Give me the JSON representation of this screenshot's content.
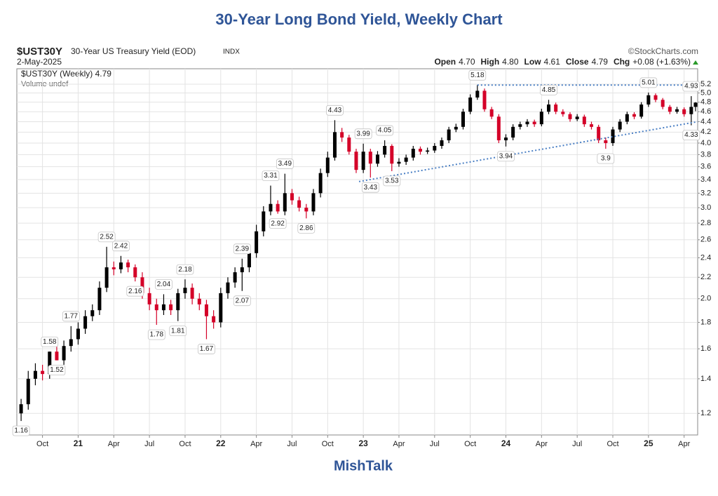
{
  "chart_data": {
    "type": "candlestick",
    "title": "30-Year Long Bond Yield, Weekly Chart",
    "symbol": "$UST30Y",
    "description": "30-Year US Treasury Yield (EOD)",
    "exchange": "INDX",
    "source": "©StockCharts.com",
    "date": "2-May-2025",
    "quote": [
      [
        "Open",
        "4.70"
      ],
      [
        "High",
        "4.80"
      ],
      [
        "Low",
        "4.61"
      ],
      [
        "Close",
        "4.79"
      ],
      [
        "Chg",
        "+0.08 (+1.63%)"
      ]
    ],
    "legend": [
      "$UST30Y (Weekly) 4.79",
      "Volume undef"
    ],
    "footer": "MishTalk",
    "ylog": true,
    "grid": true,
    "up_color": "#000000",
    "down_color": "#d40028",
    "trend_color": "#4a7fc4",
    "xlim": [
      2020.57,
      2025.345
    ],
    "ylim": [
      1.09,
      5.57
    ],
    "xticks": [
      {
        "value": 2020.75,
        "label": "Oct"
      },
      {
        "value": 2021.0,
        "label": "21"
      },
      {
        "value": 2021.25,
        "label": "Apr"
      },
      {
        "value": 2021.5,
        "label": "Jul"
      },
      {
        "value": 2021.75,
        "label": "Oct"
      },
      {
        "value": 2022.0,
        "label": "22"
      },
      {
        "value": 2022.25,
        "label": "Apr"
      },
      {
        "value": 2022.5,
        "label": "Jul"
      },
      {
        "value": 2022.75,
        "label": "Oct"
      },
      {
        "value": 2023.0,
        "label": "23"
      },
      {
        "value": 2023.25,
        "label": "Apr"
      },
      {
        "value": 2023.5,
        "label": "Jul"
      },
      {
        "value": 2023.75,
        "label": "Oct"
      },
      {
        "value": 2024.0,
        "label": "24"
      },
      {
        "value": 2024.25,
        "label": "Apr"
      },
      {
        "value": 2024.5,
        "label": "Jul"
      },
      {
        "value": 2024.75,
        "label": "Oct"
      },
      {
        "value": 2025.0,
        "label": "25"
      },
      {
        "value": 2025.25,
        "label": "Apr"
      }
    ],
    "yticks": [
      1.2,
      1.4,
      1.6,
      1.8,
      {
        "value": 2.0,
        "label": "2.0"
      },
      2.2,
      2.4,
      2.6,
      2.8,
      {
        "value": 3.0,
        "label": "3.0"
      },
      3.2,
      3.4,
      3.6,
      3.8,
      {
        "value": 4.0,
        "label": "4.0"
      },
      4.2,
      4.4,
      4.6,
      4.8,
      {
        "value": 5.0,
        "label": "5.0"
      },
      5.2
    ],
    "x": [
      2020.6,
      2020.65,
      2020.7,
      2020.75,
      2020.8,
      2020.85,
      2020.9,
      2020.95,
      2021.0,
      2021.05,
      2021.1,
      2021.15,
      2021.2,
      2021.25,
      2021.3,
      2021.35,
      2021.4,
      2021.45,
      2021.5,
      2021.55,
      2021.6,
      2021.65,
      2021.7,
      2021.75,
      2021.8,
      2021.85,
      2021.9,
      2021.95,
      2022.0,
      2022.05,
      2022.1,
      2022.15,
      2022.2,
      2022.25,
      2022.3,
      2022.35,
      2022.4,
      2022.45,
      2022.5,
      2022.55,
      2022.6,
      2022.65,
      2022.7,
      2022.75,
      2022.8,
      2022.85,
      2022.9,
      2022.95,
      2023.0,
      2023.05,
      2023.1,
      2023.15,
      2023.2,
      2023.25,
      2023.3,
      2023.35,
      2023.4,
      2023.45,
      2023.5,
      2023.55,
      2023.6,
      2023.65,
      2023.7,
      2023.75,
      2023.8,
      2023.85,
      2023.9,
      2023.95,
      2024.0,
      2024.05,
      2024.1,
      2024.15,
      2024.2,
      2024.25,
      2024.3,
      2024.35,
      2024.4,
      2024.45,
      2024.5,
      2024.55,
      2024.6,
      2024.65,
      2024.7,
      2024.75,
      2024.8,
      2024.85,
      2024.9,
      2024.95,
      2025.0,
      2025.05,
      2025.1,
      2025.15,
      2025.2,
      2025.25,
      2025.3,
      2025.33
    ],
    "open": [
      1.2,
      1.25,
      1.4,
      1.45,
      1.43,
      1.58,
      1.52,
      1.62,
      1.67,
      1.75,
      1.85,
      1.9,
      2.1,
      2.3,
      2.28,
      2.35,
      2.3,
      2.2,
      2.05,
      1.95,
      1.9,
      1.95,
      1.9,
      2.05,
      2.1,
      2.0,
      1.95,
      1.85,
      1.8,
      2.05,
      2.15,
      2.25,
      2.3,
      2.45,
      2.7,
      2.95,
      3.05,
      2.95,
      3.2,
      3.1,
      3.0,
      2.95,
      3.2,
      3.5,
      3.75,
      4.2,
      4.1,
      3.85,
      3.55,
      3.85,
      3.65,
      3.8,
      3.95,
      3.65,
      3.68,
      3.75,
      3.9,
      3.85,
      3.87,
      3.95,
      4.05,
      4.25,
      4.3,
      4.6,
      4.9,
      5.05,
      4.65,
      4.5,
      4.05,
      4.1,
      4.3,
      4.35,
      4.4,
      4.35,
      4.6,
      4.75,
      4.6,
      4.55,
      4.45,
      4.5,
      4.35,
      4.3,
      4.05,
      4.0,
      4.25,
      4.4,
      4.55,
      4.5,
      4.75,
      4.95,
      4.85,
      4.7,
      4.6,
      4.65,
      4.55,
      4.7
    ],
    "high": [
      1.28,
      1.45,
      1.5,
      1.49,
      1.58,
      1.62,
      1.66,
      1.77,
      1.8,
      1.9,
      1.95,
      2.16,
      2.52,
      2.36,
      2.42,
      2.38,
      2.33,
      2.25,
      2.1,
      2.0,
      2.04,
      1.99,
      2.09,
      2.18,
      2.14,
      2.05,
      1.99,
      1.9,
      2.1,
      2.2,
      2.3,
      2.39,
      2.52,
      2.78,
      3.02,
      3.31,
      3.1,
      3.49,
      3.26,
      3.15,
      3.05,
      3.26,
      3.57,
      3.85,
      4.43,
      4.28,
      4.15,
      3.9,
      3.99,
      3.9,
      3.86,
      4.05,
      3.98,
      3.74,
      3.8,
      3.95,
      3.94,
      3.92,
      4.0,
      4.1,
      4.3,
      4.36,
      4.66,
      4.97,
      5.18,
      5.1,
      4.7,
      4.55,
      4.16,
      4.35,
      4.4,
      4.45,
      4.44,
      4.66,
      4.85,
      4.79,
      4.65,
      4.59,
      4.55,
      4.54,
      4.4,
      4.34,
      4.1,
      4.3,
      4.45,
      4.6,
      4.59,
      4.8,
      5.01,
      4.99,
      4.89,
      4.74,
      4.7,
      4.69,
      4.93,
      4.8
    ],
    "low": [
      1.16,
      1.22,
      1.36,
      1.39,
      1.4,
      1.52,
      1.49,
      1.58,
      1.63,
      1.71,
      1.81,
      1.86,
      2.06,
      2.22,
      2.24,
      2.25,
      2.16,
      2.0,
      1.9,
      1.78,
      1.86,
      1.86,
      1.81,
      2.0,
      1.95,
      1.9,
      1.67,
      1.75,
      1.76,
      2.0,
      2.1,
      2.07,
      2.25,
      2.4,
      2.64,
      2.9,
      2.92,
      2.9,
      3.04,
      2.95,
      2.86,
      2.9,
      3.14,
      3.44,
      3.7,
      4.02,
      3.8,
      3.5,
      3.5,
      3.43,
      3.6,
      3.75,
      3.53,
      3.6,
      3.63,
      3.7,
      3.8,
      3.81,
      3.83,
      3.9,
      4.0,
      4.2,
      4.25,
      4.55,
      4.85,
      4.6,
      4.45,
      4.0,
      3.94,
      4.05,
      4.25,
      4.3,
      4.3,
      4.31,
      4.55,
      4.55,
      4.5,
      4.4,
      4.41,
      4.3,
      4.25,
      4.0,
      3.9,
      3.95,
      4.2,
      4.35,
      4.45,
      4.46,
      4.7,
      4.8,
      4.65,
      4.55,
      4.56,
      4.5,
      4.33,
      4.61
    ],
    "close": [
      1.25,
      1.4,
      1.45,
      1.43,
      1.58,
      1.52,
      1.62,
      1.67,
      1.75,
      1.85,
      1.9,
      2.1,
      2.3,
      2.28,
      2.35,
      2.3,
      2.2,
      2.05,
      1.95,
      1.9,
      1.95,
      1.9,
      2.05,
      2.1,
      2.0,
      1.95,
      1.85,
      1.8,
      2.05,
      2.15,
      2.25,
      2.3,
      2.45,
      2.7,
      2.95,
      3.05,
      2.95,
      3.2,
      3.1,
      3.0,
      2.95,
      3.2,
      3.5,
      3.75,
      4.2,
      4.1,
      3.85,
      3.55,
      3.85,
      3.65,
      3.8,
      3.95,
      3.65,
      3.68,
      3.75,
      3.9,
      3.85,
      3.87,
      3.95,
      4.05,
      4.25,
      4.3,
      4.6,
      4.9,
      5.05,
      4.65,
      4.5,
      4.05,
      4.1,
      4.3,
      4.35,
      4.4,
      4.35,
      4.6,
      4.75,
      4.6,
      4.55,
      4.45,
      4.5,
      4.35,
      4.3,
      4.05,
      4.0,
      4.25,
      4.4,
      4.55,
      4.5,
      4.75,
      4.95,
      4.85,
      4.7,
      4.6,
      4.65,
      4.55,
      4.7,
      4.79
    ],
    "high_labels": [
      {
        "x": 2020.8,
        "value": 1.58
      },
      {
        "x": 2020.95,
        "value": 1.77
      },
      {
        "x": 2021.2,
        "value": 2.52
      },
      {
        "x": 2021.3,
        "value": 2.42
      },
      {
        "x": 2021.6,
        "value": 2.04
      },
      {
        "x": 2021.75,
        "value": 2.18
      },
      {
        "x": 2022.15,
        "value": 2.39
      },
      {
        "x": 2022.35,
        "value": 3.31
      },
      {
        "x": 2022.45,
        "value": 3.49
      },
      {
        "x": 2022.8,
        "value": 4.43
      },
      {
        "x": 2023.0,
        "value": 3.99
      },
      {
        "x": 2023.15,
        "value": 4.05
      },
      {
        "x": 2023.8,
        "value": 5.18
      },
      {
        "x": 2024.3,
        "value": 4.85
      },
      {
        "x": 2025.0,
        "value": 5.01
      },
      {
        "x": 2025.3,
        "value": 4.93
      }
    ],
    "low_labels": [
      {
        "x": 2020.6,
        "value": 1.16
      },
      {
        "x": 2020.85,
        "value": 1.52
      },
      {
        "x": 2021.4,
        "value": 2.16
      },
      {
        "x": 2021.55,
        "value": 1.78
      },
      {
        "x": 2021.7,
        "value": 1.81
      },
      {
        "x": 2021.9,
        "value": 1.67
      },
      {
        "x": 2022.15,
        "value": 2.07
      },
      {
        "x": 2022.4,
        "value": 2.92
      },
      {
        "x": 2022.6,
        "value": 2.86
      },
      {
        "x": 2023.05,
        "value": 3.43
      },
      {
        "x": 2023.2,
        "value": 3.53
      },
      {
        "x": 2024.0,
        "value": 3.94
      },
      {
        "x": 2024.7,
        "value": 3.9
      },
      {
        "x": 2025.3,
        "value": 4.33
      }
    ],
    "trendlines": [
      {
        "x": [
          2023.8,
          2025.345
        ],
        "values": [
          5.18,
          5.18
        ]
      },
      {
        "x": [
          2022.97,
          2025.345
        ],
        "values": [
          3.37,
          4.4
        ]
      }
    ]
  }
}
